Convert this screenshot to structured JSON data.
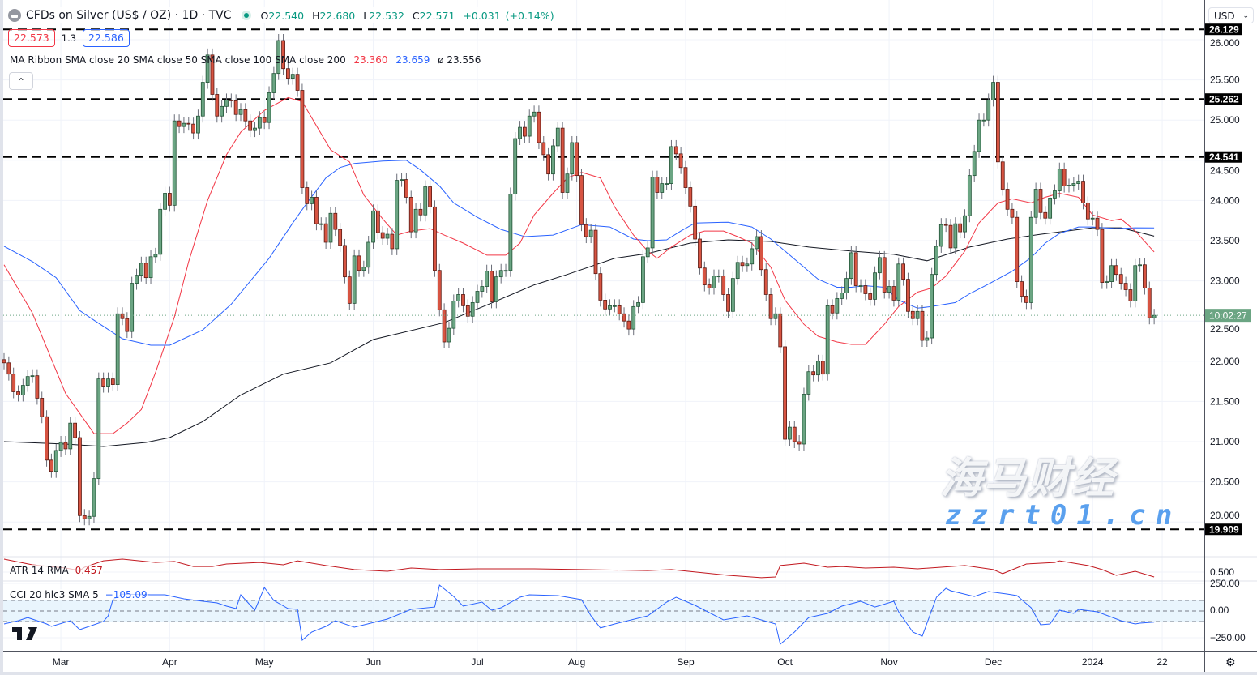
{
  "header": {
    "title": "CFDs on Silver (US$ / OZ) · 1D · TVC",
    "ohlc": {
      "o_label": "O",
      "o": "22.540",
      "h_label": "H",
      "h": "22.680",
      "l_label": "L",
      "l": "22.532",
      "c_label": "C",
      "c": "22.571",
      "change": "+0.031",
      "change_pct": "(+0.14%)"
    },
    "bid": "22.573",
    "spread": "1.3",
    "ask": "22.586",
    "currency": "USD",
    "collapse_icon": "chevron-up-icon",
    "market_status_color": "#089981"
  },
  "ma_legend": {
    "label": "MA Ribbon SMA close 20 SMA close 50 SMA close 100 SMA close 200",
    "v1": "23.360",
    "v2": "23.659",
    "v3": "ø 23.556"
  },
  "atr_legend": {
    "label": "ATR 14 RMA",
    "value": "0.457"
  },
  "cci_legend": {
    "label": "CCI 20 hlc3 SMA 5",
    "value": "−105.09"
  },
  "countdown": "10:02:27",
  "watermark": {
    "cn": "海马财经",
    "url": "zzrt01.cn"
  },
  "colors": {
    "up": "#6ba583",
    "up_border": "#225437",
    "down": "#d75442",
    "down_border": "#5b1a13",
    "sma20": "#f23645",
    "sma50": "#2962ff",
    "sma200": "#131722",
    "atr": "#c2181f",
    "cci": "#2962ff",
    "cci_band": "#e3f2fd"
  },
  "chart_data": {
    "type": "candlestick",
    "price_axis": {
      "ylim": [
        19.55,
        26.35
      ],
      "ticks": [
        "20.000",
        "20.500",
        "21.000",
        "21.500",
        "22.000",
        "22.500",
        "23.000",
        "23.500",
        "24.000",
        "24.500",
        "25.000",
        "25.500",
        "26.000"
      ]
    },
    "levels": [
      {
        "value": 26.129,
        "label": "26.129"
      },
      {
        "value": 25.262,
        "label": "25.262"
      },
      {
        "value": 24.541,
        "label": "24.541"
      },
      {
        "value": 19.909,
        "label": "19.909"
      }
    ],
    "last_price": 22.571,
    "first_open": 22.02,
    "time_ticks": [
      {
        "bar": 13,
        "label": "Mar"
      },
      {
        "bar": 36,
        "label": "Apr"
      },
      {
        "bar": 56,
        "label": "May"
      },
      {
        "bar": 79,
        "label": "Jun"
      },
      {
        "bar": 101,
        "label": "Jul"
      },
      {
        "bar": 122,
        "label": "Aug"
      },
      {
        "bar": 145,
        "label": "Sep"
      },
      {
        "bar": 166,
        "label": "Oct"
      },
      {
        "bar": 188,
        "label": "Nov"
      },
      {
        "bar": 210,
        "label": "Dec"
      },
      {
        "bar": 231,
        "label": "2024"
      },
      {
        "bar": 245.7,
        "label": "22"
      }
    ],
    "closes": [
      21.98,
      21.84,
      21.62,
      21.58,
      21.7,
      21.81,
      21.82,
      21.54,
      21.31,
      20.77,
      20.63,
      20.89,
      20.99,
      20.91,
      21.23,
      21.05,
      20.08,
      20.04,
      20.07,
      20.54,
      21.78,
      21.69,
      21.78,
      21.71,
      22.59,
      22.53,
      22.37,
      22.97,
      23.07,
      23.22,
      23.04,
      23.3,
      23.33,
      23.89,
      24.09,
      23.94,
      24.99,
      24.92,
      24.96,
      24.95,
      24.84,
      25.05,
      25.47,
      25.81,
      25.32,
      25.05,
      25.17,
      25.25,
      25.24,
      25.07,
      25.13,
      24.99,
      24.87,
      24.9,
      25.03,
      24.97,
      25.34,
      25.58,
      25.99,
      25.64,
      25.52,
      25.57,
      25.37,
      24.16,
      23.96,
      24.04,
      23.71,
      23.71,
      23.48,
      23.84,
      23.64,
      23.44,
      23.05,
      22.72,
      23.31,
      23.13,
      23.17,
      23.48,
      23.87,
      23.6,
      23.53,
      23.58,
      23.4,
      24.25,
      24.26,
      24.04,
      23.61,
      23.89,
      23.82,
      24.17,
      23.92,
      23.13,
      22.64,
      22.24,
      22.41,
      22.75,
      22.83,
      22.69,
      22.56,
      22.73,
      22.87,
      22.93,
      23.12,
      22.74,
      23.05,
      23.13,
      23.13,
      24.08,
      24.77,
      24.91,
      24.8,
      25.05,
      25.1,
      24.72,
      24.57,
      24.33,
      24.68,
      24.9,
      24.1,
      24.33,
      24.72,
      24.31,
      23.7,
      23.55,
      23.63,
      23.09,
      22.76,
      22.65,
      22.69,
      22.69,
      22.59,
      22.5,
      22.4,
      22.68,
      22.73,
      23.3,
      23.41,
      24.29,
      24.1,
      24.21,
      24.21,
      24.67,
      24.58,
      24.41,
      24.16,
      23.93,
      23.52,
      23.16,
      22.95,
      22.91,
      23.06,
      23.06,
      22.83,
      22.62,
      23.03,
      23.23,
      23.19,
      23.21,
      23.4,
      23.55,
      23.14,
      22.83,
      22.53,
      22.59,
      22.18,
      21.03,
      21.18,
      21.0,
      20.97,
      21.59,
      21.87,
      21.83,
      22.0,
      21.84,
      22.69,
      22.6,
      22.78,
      22.85,
      23.03,
      23.35,
      22.94,
      22.94,
      22.84,
      22.77,
      23.1,
      23.29,
      22.86,
      22.93,
      22.76,
      23.21,
      23.02,
      22.62,
      22.53,
      22.62,
      22.26,
      22.29,
      23.08,
      23.43,
      23.7,
      23.69,
      23.41,
      23.71,
      23.61,
      23.81,
      24.31,
      24.61,
      25.0,
      25.0,
      25.25,
      25.47,
      24.48,
      24.14,
      23.89,
      23.79,
      22.99,
      22.81,
      22.73,
      23.79,
      24.14,
      23.85,
      23.78,
      24.03,
      24.12,
      24.39,
      24.18,
      24.19,
      24.21,
      24.24,
      23.97,
      23.77,
      23.78,
      23.64,
      22.98,
      22.99,
      23.19,
      23.08,
      22.97,
      22.89,
      22.75,
      23.19,
      23.2,
      22.91,
      22.54,
      22.571
    ],
    "sma20": [
      [
        1,
        23.2
      ],
      [
        7,
        22.6
      ],
      [
        14,
        21.6
      ],
      [
        20,
        21.1
      ],
      [
        24,
        21.1
      ],
      [
        27,
        21.23
      ],
      [
        30,
        21.4
      ],
      [
        33,
        21.86
      ],
      [
        37,
        22.55
      ],
      [
        40,
        23.24
      ],
      [
        44,
        24.0
      ],
      [
        48,
        24.57
      ],
      [
        51,
        24.85
      ],
      [
        56,
        25.12
      ],
      [
        61,
        25.28
      ],
      [
        64,
        25.23
      ],
      [
        67,
        24.93
      ],
      [
        70,
        24.63
      ],
      [
        74,
        24.48
      ],
      [
        77,
        24.07
      ],
      [
        81,
        23.77
      ],
      [
        84,
        23.57
      ],
      [
        87,
        23.62
      ],
      [
        91,
        23.65
      ],
      [
        94,
        23.57
      ],
      [
        98,
        23.47
      ],
      [
        103,
        23.32
      ],
      [
        107,
        23.32
      ],
      [
        110,
        23.47
      ],
      [
        113,
        23.82
      ],
      [
        117,
        24.09
      ],
      [
        120,
        24.28
      ],
      [
        123,
        24.35
      ],
      [
        127,
        24.28
      ],
      [
        130,
        23.92
      ],
      [
        134,
        23.57
      ],
      [
        137,
        23.37
      ],
      [
        139,
        23.28
      ],
      [
        142,
        23.42
      ],
      [
        146,
        23.57
      ],
      [
        149,
        23.62
      ],
      [
        153,
        23.62
      ],
      [
        156,
        23.55
      ],
      [
        159,
        23.47
      ],
      [
        163,
        23.17
      ],
      [
        166,
        22.76
      ],
      [
        170,
        22.46
      ],
      [
        173,
        22.31
      ],
      [
        177,
        22.24
      ],
      [
        180,
        22.21
      ],
      [
        183,
        22.21
      ],
      [
        187,
        22.46
      ],
      [
        190,
        22.68
      ],
      [
        194,
        22.86
      ],
      [
        197,
        22.91
      ],
      [
        200,
        23.06
      ],
      [
        204,
        23.37
      ],
      [
        207,
        23.72
      ],
      [
        211,
        23.97
      ],
      [
        214,
        24.02
      ],
      [
        218,
        23.97
      ],
      [
        221,
        24.04
      ],
      [
        224,
        24.09
      ],
      [
        228,
        24.04
      ],
      [
        231,
        23.82
      ],
      [
        235,
        23.75
      ],
      [
        237,
        23.77
      ],
      [
        240,
        23.62
      ],
      [
        244,
        23.36
      ]
    ],
    "sma50": [
      [
        1,
        23.43
      ],
      [
        7,
        23.24
      ],
      [
        12,
        23.04
      ],
      [
        17,
        22.63
      ],
      [
        20,
        22.51
      ],
      [
        26,
        22.28
      ],
      [
        32,
        22.2
      ],
      [
        36,
        22.2
      ],
      [
        43,
        22.39
      ],
      [
        49,
        22.71
      ],
      [
        57,
        23.28
      ],
      [
        62,
        23.72
      ],
      [
        65,
        23.97
      ],
      [
        69,
        24.28
      ],
      [
        72,
        24.41
      ],
      [
        75,
        24.46
      ],
      [
        81,
        24.49
      ],
      [
        86,
        24.5
      ],
      [
        89,
        24.38
      ],
      [
        93,
        24.18
      ],
      [
        96,
        23.97
      ],
      [
        101,
        23.79
      ],
      [
        106,
        23.64
      ],
      [
        111,
        23.55
      ],
      [
        117,
        23.57
      ],
      [
        123,
        23.7
      ],
      [
        129,
        23.67
      ],
      [
        134,
        23.52
      ],
      [
        137,
        23.5
      ],
      [
        141,
        23.51
      ],
      [
        144,
        23.62
      ],
      [
        147,
        23.72
      ],
      [
        154,
        23.73
      ],
      [
        159,
        23.67
      ],
      [
        163,
        23.52
      ],
      [
        168,
        23.27
      ],
      [
        173,
        23.02
      ],
      [
        177,
        22.92
      ],
      [
        180,
        22.92
      ],
      [
        183,
        22.94
      ],
      [
        187,
        22.92
      ],
      [
        190,
        22.76
      ],
      [
        194,
        22.66
      ],
      [
        197,
        22.68
      ],
      [
        202,
        22.73
      ],
      [
        205,
        22.84
      ],
      [
        209,
        22.96
      ],
      [
        214,
        23.12
      ],
      [
        218,
        23.29
      ],
      [
        221,
        23.47
      ],
      [
        224,
        23.59
      ],
      [
        228,
        23.67
      ],
      [
        231,
        23.67
      ],
      [
        236,
        23.65
      ],
      [
        240,
        23.66
      ],
      [
        244,
        23.659
      ]
    ],
    "sma200": [
      [
        1,
        21.0
      ],
      [
        14,
        20.97
      ],
      [
        22,
        20.94
      ],
      [
        31,
        20.99
      ],
      [
        36,
        21.05
      ],
      [
        43,
        21.25
      ],
      [
        51,
        21.58
      ],
      [
        60,
        21.84
      ],
      [
        70,
        21.98
      ],
      [
        79,
        22.27
      ],
      [
        94,
        22.48
      ],
      [
        103,
        22.7
      ],
      [
        113,
        22.95
      ],
      [
        120,
        23.08
      ],
      [
        130,
        23.28
      ],
      [
        137,
        23.34
      ],
      [
        146,
        23.47
      ],
      [
        154,
        23.51
      ],
      [
        163,
        23.49
      ],
      [
        171,
        23.42
      ],
      [
        180,
        23.37
      ],
      [
        189,
        23.33
      ],
      [
        196,
        23.25
      ],
      [
        205,
        23.42
      ],
      [
        213,
        23.52
      ],
      [
        220,
        23.58
      ],
      [
        231,
        23.66
      ],
      [
        237,
        23.66
      ],
      [
        244,
        23.556
      ]
    ],
    "atr": {
      "axis_tick": "0.500",
      "values": [
        [
          1,
          0.615
        ],
        [
          7,
          0.565
        ],
        [
          14,
          0.536
        ],
        [
          17,
          0.514
        ],
        [
          18,
          0.543
        ],
        [
          22,
          0.6
        ],
        [
          26,
          0.615
        ],
        [
          33,
          0.586
        ],
        [
          37,
          0.594
        ],
        [
          41,
          0.55
        ],
        [
          45,
          0.55
        ],
        [
          48,
          0.572
        ],
        [
          55,
          0.586
        ],
        [
          60,
          0.565
        ],
        [
          63,
          0.6
        ],
        [
          69,
          0.558
        ],
        [
          75,
          0.522
        ],
        [
          82,
          0.507
        ],
        [
          87,
          0.536
        ],
        [
          93,
          0.522
        ],
        [
          101,
          0.529
        ],
        [
          113,
          0.529
        ],
        [
          123,
          0.522
        ],
        [
          137,
          0.514
        ],
        [
          142,
          0.522
        ],
        [
          154,
          0.471
        ],
        [
          161,
          0.45
        ],
        [
          164,
          0.457
        ],
        [
          165,
          0.558
        ],
        [
          170,
          0.579
        ],
        [
          175,
          0.543
        ],
        [
          178,
          0.55
        ],
        [
          183,
          0.536
        ],
        [
          189,
          0.543
        ],
        [
          194,
          0.529
        ],
        [
          199,
          0.543
        ],
        [
          204,
          0.558
        ],
        [
          210,
          0.522
        ],
        [
          212,
          0.486
        ],
        [
          217,
          0.572
        ],
        [
          223,
          0.586
        ],
        [
          224,
          0.6
        ],
        [
          230,
          0.558
        ],
        [
          233,
          0.522
        ],
        [
          236,
          0.471
        ],
        [
          240,
          0.507
        ],
        [
          244,
          0.457
        ]
      ]
    },
    "cci": {
      "axis_ticks": [
        "250.00",
        "0.00",
        "−250.00"
      ],
      "band": [
        -100,
        100
      ],
      "values": [
        [
          1,
          -123
        ],
        [
          4,
          -92
        ],
        [
          6,
          -62
        ],
        [
          10,
          -123
        ],
        [
          11,
          -146
        ],
        [
          15,
          -92
        ],
        [
          17,
          -177
        ],
        [
          22,
          -100
        ],
        [
          23,
          -46
        ],
        [
          24,
          108
        ],
        [
          26,
          161
        ],
        [
          32,
          154
        ],
        [
          35,
          154
        ],
        [
          39,
          115
        ],
        [
          43,
          92
        ],
        [
          46,
          77
        ],
        [
          48,
          46
        ],
        [
          50,
          23
        ],
        [
          51,
          154
        ],
        [
          54,
          8
        ],
        [
          56,
          223
        ],
        [
          58,
          100
        ],
        [
          61,
          23
        ],
        [
          63,
          15
        ],
        [
          64,
          -277
        ],
        [
          66,
          -200
        ],
        [
          69,
          -146
        ],
        [
          71,
          -92
        ],
        [
          75,
          -154
        ],
        [
          82,
          -77
        ],
        [
          87,
          15
        ],
        [
          92,
          38
        ],
        [
          93,
          246
        ],
        [
          96,
          138
        ],
        [
          98,
          46
        ],
        [
          102,
          85
        ],
        [
          104,
          8
        ],
        [
          106,
          31
        ],
        [
          110,
          131
        ],
        [
          112,
          154
        ],
        [
          118,
          146
        ],
        [
          123,
          108
        ],
        [
          125,
          -46
        ],
        [
          127,
          -161
        ],
        [
          130,
          -123
        ],
        [
          137,
          -46
        ],
        [
          141,
          85
        ],
        [
          143,
          131
        ],
        [
          147,
          54
        ],
        [
          153,
          -85
        ],
        [
          158,
          -46
        ],
        [
          164,
          -123
        ],
        [
          165,
          -315
        ],
        [
          168,
          -200
        ],
        [
          171,
          -62
        ],
        [
          175,
          -23
        ],
        [
          178,
          46
        ],
        [
          182,
          92
        ],
        [
          185,
          38
        ],
        [
          189,
          92
        ],
        [
          190,
          -8
        ],
        [
          193,
          -200
        ],
        [
          195,
          -238
        ],
        [
          198,
          131
        ],
        [
          200,
          215
        ],
        [
          201,
          192
        ],
        [
          206,
          138
        ],
        [
          209,
          185
        ],
        [
          213,
          161
        ],
        [
          215,
          146
        ],
        [
          218,
          31
        ],
        [
          220,
          -131
        ],
        [
          222,
          -123
        ],
        [
          224,
          8
        ],
        [
          227,
          -23
        ],
        [
          228,
          15
        ],
        [
          232,
          -8
        ],
        [
          237,
          -92
        ],
        [
          240,
          -123
        ],
        [
          241,
          -115
        ],
        [
          244,
          -105.09
        ]
      ]
    }
  }
}
